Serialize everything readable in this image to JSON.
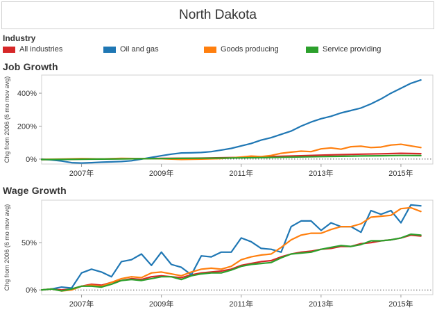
{
  "title": "North Dakota",
  "legend": {
    "title": "Industry",
    "items": [
      {
        "label": "All industries",
        "color": "#d62728"
      },
      {
        "label": "Oil and gas",
        "color": "#1f77b4"
      },
      {
        "label": "Goods producing",
        "color": "#ff7f0e"
      },
      {
        "label": "Service providing",
        "color": "#2ca02c"
      }
    ]
  },
  "chart_data": [
    {
      "type": "line",
      "title": "Job Growth",
      "ylabel": "Chg from 2006 (6 mo mov avg)",
      "xlim": [
        2006,
        2015.8
      ],
      "ylim": [
        -30,
        510
      ],
      "yticks": [
        0,
        200,
        400
      ],
      "ytick_labels": [
        "0%",
        "200%",
        "400%"
      ],
      "xticks": [
        2007,
        2009,
        2011,
        2013,
        2015
      ],
      "xtick_labels": [
        "2007年",
        "2009年",
        "2011年",
        "2013年",
        "2015年"
      ],
      "zero_line": "dotted",
      "series": [
        {
          "name": "All industries",
          "color": "#d62728",
          "x": [
            2006,
            2006.5,
            2007,
            2007.5,
            2008,
            2008.5,
            2009,
            2009.5,
            2010,
            2010.5,
            2011,
            2011.5,
            2012,
            2012.5,
            2013,
            2013.5,
            2014,
            2014.5,
            2015,
            2015.5
          ],
          "values": [
            -3,
            -2,
            0,
            1,
            2,
            3,
            4,
            5,
            6,
            8,
            10,
            13,
            17,
            20,
            24,
            27,
            30,
            32,
            35,
            33
          ]
        },
        {
          "name": "Oil and gas",
          "color": "#1f77b4",
          "x": [
            2006,
            2006.25,
            2006.5,
            2006.75,
            2007,
            2007.25,
            2007.5,
            2007.75,
            2008,
            2008.25,
            2008.5,
            2008.75,
            2009,
            2009.25,
            2009.5,
            2009.75,
            2010,
            2010.25,
            2010.5,
            2010.75,
            2011,
            2011.25,
            2011.5,
            2011.75,
            2012,
            2012.25,
            2012.5,
            2012.75,
            2013,
            2013.25,
            2013.5,
            2013.75,
            2014,
            2014.25,
            2014.5,
            2014.75,
            2015,
            2015.25,
            2015.5
          ],
          "values": [
            0,
            -5,
            -12,
            -22,
            -24,
            -22,
            -19,
            -17,
            -15,
            -10,
            0,
            10,
            20,
            30,
            37,
            38,
            40,
            45,
            55,
            65,
            80,
            95,
            115,
            130,
            150,
            170,
            200,
            225,
            245,
            260,
            280,
            295,
            310,
            335,
            365,
            400,
            430,
            460,
            480
          ]
        },
        {
          "name": "Goods producing",
          "color": "#ff7f0e",
          "x": [
            2006,
            2006.5,
            2007,
            2007.5,
            2008,
            2008.5,
            2009,
            2009.5,
            2010,
            2010.5,
            2011,
            2011.25,
            2011.5,
            2011.75,
            2012,
            2012.25,
            2012.5,
            2012.75,
            2013,
            2013.25,
            2013.5,
            2013.75,
            2014,
            2014.25,
            2014.5,
            2014.75,
            2015,
            2015.25,
            2015.5
          ],
          "values": [
            -2,
            0,
            3,
            1,
            4,
            3,
            2,
            -2,
            0,
            3,
            12,
            18,
            15,
            22,
            35,
            42,
            48,
            45,
            62,
            68,
            60,
            75,
            78,
            70,
            73,
            85,
            90,
            80,
            70
          ]
        },
        {
          "name": "Service providing",
          "color": "#2ca02c",
          "x": [
            2006,
            2006.5,
            2007,
            2007.5,
            2008,
            2008.5,
            2009,
            2009.5,
            2010,
            2010.5,
            2011,
            2011.5,
            2012,
            2012.5,
            2013,
            2013.5,
            2014,
            2014.5,
            2015,
            2015.5
          ],
          "values": [
            -3,
            -2,
            -1,
            0,
            1,
            2,
            3,
            4,
            5,
            6,
            7,
            9,
            11,
            13,
            15,
            17,
            19,
            20,
            22,
            21
          ]
        }
      ]
    },
    {
      "type": "line",
      "title": "Wage Growth",
      "ylabel": "Chg from 2006 (6 mo mov avg)",
      "xlim": [
        2006,
        2015.8
      ],
      "ylim": [
        -5,
        95
      ],
      "yticks": [
        0,
        50
      ],
      "ytick_labels": [
        "0%",
        "50%"
      ],
      "xticks": [
        2007,
        2009,
        2011,
        2013,
        2015
      ],
      "xtick_labels": [
        "2007年",
        "2009年",
        "2011年",
        "2013年",
        "2015年"
      ],
      "zero_line": "dotted",
      "series": [
        {
          "name": "All industries",
          "color": "#d62728",
          "x": [
            2006,
            2006.25,
            2006.5,
            2006.75,
            2007,
            2007.25,
            2007.5,
            2007.75,
            2008,
            2008.25,
            2008.5,
            2008.75,
            2009,
            2009.25,
            2009.5,
            2009.75,
            2010,
            2010.25,
            2010.5,
            2010.75,
            2011,
            2011.25,
            2011.5,
            2011.75,
            2012,
            2012.25,
            2012.5,
            2012.75,
            2013,
            2013.25,
            2013.5,
            2013.75,
            2014,
            2014.25,
            2014.5,
            2014.75,
            2015,
            2015.25,
            2015.5
          ],
          "values": [
            0,
            1,
            0,
            1,
            4,
            6,
            5,
            8,
            10,
            12,
            11,
            14,
            15,
            14,
            13,
            16,
            18,
            19,
            20,
            22,
            26,
            28,
            30,
            31,
            35,
            38,
            40,
            41,
            43,
            44,
            46,
            46,
            49,
            50,
            52,
            53,
            55,
            58,
            57
          ]
        },
        {
          "name": "Oil and gas",
          "color": "#1f77b4",
          "x": [
            2006,
            2006.25,
            2006.5,
            2006.75,
            2007,
            2007.25,
            2007.5,
            2007.75,
            2008,
            2008.25,
            2008.5,
            2008.75,
            2009,
            2009.25,
            2009.5,
            2009.75,
            2010,
            2010.25,
            2010.5,
            2010.75,
            2011,
            2011.25,
            2011.5,
            2011.75,
            2012,
            2012.25,
            2012.5,
            2012.75,
            2013,
            2013.25,
            2013.5,
            2013.75,
            2014,
            2014.25,
            2014.5,
            2014.75,
            2015,
            2015.25,
            2015.5
          ],
          "values": [
            0,
            1,
            3,
            2,
            18,
            22,
            19,
            14,
            30,
            32,
            38,
            26,
            40,
            27,
            24,
            16,
            36,
            35,
            40,
            40,
            55,
            51,
            44,
            43,
            40,
            67,
            73,
            73,
            63,
            71,
            67,
            67,
            61,
            84,
            80,
            84,
            71,
            90,
            89
          ]
        },
        {
          "name": "Goods producing",
          "color": "#ff7f0e",
          "x": [
            2006,
            2006.25,
            2006.5,
            2006.75,
            2007,
            2007.25,
            2007.5,
            2007.75,
            2008,
            2008.25,
            2008.5,
            2008.75,
            2009,
            2009.25,
            2009.5,
            2009.75,
            2010,
            2010.25,
            2010.5,
            2010.75,
            2011,
            2011.25,
            2011.5,
            2011.75,
            2012,
            2012.25,
            2012.5,
            2012.75,
            2013,
            2013.25,
            2013.5,
            2013.75,
            2014,
            2014.25,
            2014.5,
            2014.75,
            2015,
            2015.25,
            2015.5
          ],
          "values": [
            0,
            1,
            -1,
            0,
            4,
            5,
            4,
            8,
            12,
            14,
            13,
            18,
            19,
            17,
            15,
            19,
            22,
            23,
            22,
            25,
            32,
            35,
            37,
            38,
            45,
            53,
            58,
            60,
            60,
            64,
            67,
            67,
            70,
            77,
            78,
            79,
            86,
            87,
            83
          ]
        },
        {
          "name": "Service providing",
          "color": "#2ca02c",
          "x": [
            2006,
            2006.25,
            2006.5,
            2006.75,
            2007,
            2007.25,
            2007.5,
            2007.75,
            2008,
            2008.25,
            2008.5,
            2008.75,
            2009,
            2009.25,
            2009.5,
            2009.75,
            2010,
            2010.25,
            2010.5,
            2010.75,
            2011,
            2011.25,
            2011.5,
            2011.75,
            2012,
            2012.25,
            2012.5,
            2012.75,
            2013,
            2013.25,
            2013.5,
            2013.75,
            2014,
            2014.25,
            2014.5,
            2014.75,
            2015,
            2015.25,
            2015.5
          ],
          "values": [
            0,
            1,
            -1,
            1,
            4,
            4,
            3,
            6,
            10,
            11,
            10,
            12,
            14,
            14,
            11,
            15,
            17,
            18,
            18,
            21,
            25,
            27,
            28,
            29,
            34,
            38,
            39,
            40,
            43,
            45,
            47,
            46,
            48,
            52,
            52,
            53,
            55,
            59,
            58
          ]
        }
      ]
    }
  ]
}
